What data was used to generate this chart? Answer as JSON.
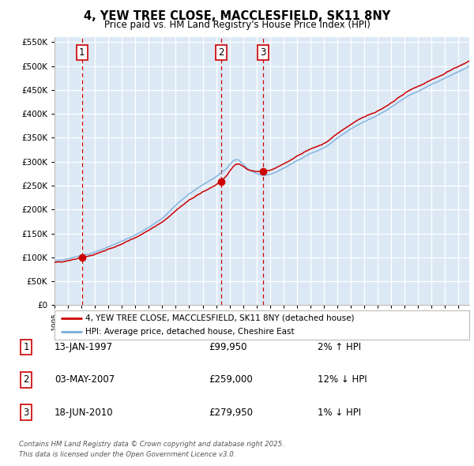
{
  "title": "4, YEW TREE CLOSE, MACCLESFIELD, SK11 8NY",
  "subtitle": "Price paid vs. HM Land Registry's House Price Index (HPI)",
  "legend_line1": "4, YEW TREE CLOSE, MACCLESFIELD, SK11 8NY (detached house)",
  "legend_line2": "HPI: Average price, detached house, Cheshire East",
  "table_entries": [
    {
      "num": "1",
      "date": "13-JAN-1997",
      "price": "£99,950",
      "pct": "2% ↑ HPI"
    },
    {
      "num": "2",
      "date": "03-MAY-2007",
      "price": "£259,000",
      "pct": "12% ↓ HPI"
    },
    {
      "num": "3",
      "date": "18-JUN-2010",
      "price": "£279,950",
      "pct": "1% ↓ HPI"
    }
  ],
  "footer_line1": "Contains HM Land Registry data © Crown copyright and database right 2025.",
  "footer_line2": "This data is licensed under the Open Government Licence v3.0.",
  "sale_years": [
    1997.04,
    2007.38,
    2010.46
  ],
  "sale_prices": [
    99950,
    259000,
    279950
  ],
  "sale_labels": [
    "1",
    "2",
    "3"
  ],
  "ylim": [
    0,
    560000
  ],
  "xlim_start": 1995.0,
  "xlim_end": 2025.8,
  "bg_color": "#dce9f5",
  "outer_bg": "#ffffff",
  "red_color": "#cc0000",
  "blue_color": "#7aaddb",
  "grid_color": "#ffffff",
  "ytick_step": 50000
}
